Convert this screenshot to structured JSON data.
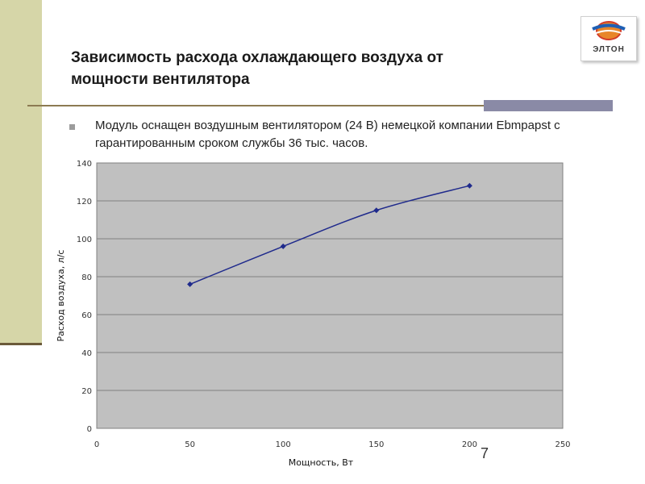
{
  "slide": {
    "title": "Зависимость расхода охлаждающего воздуха от мощности вентилятора",
    "bullet_text": "Модуль оснащен воздушным вентилятором (24 В) немецкой компании Ebmpapst с гарантированным сроком службы 36 тыс. часов.",
    "page_number": "7",
    "logo_text": "ЭЛТОН"
  },
  "colors": {
    "plot_background": "#c0c0c0",
    "series_line": "#1f2a8c",
    "gridline": "#808080",
    "accent_band": "#d6d6a8"
  },
  "chart_data": {
    "type": "line",
    "title": "",
    "xlabel": "Мощность, Вт",
    "ylabel": "Расход воздуха, л/с",
    "xlim": [
      0,
      250
    ],
    "ylim": [
      0,
      140
    ],
    "xticks": [
      0,
      50,
      100,
      150,
      200,
      250
    ],
    "yticks": [
      0,
      20,
      40,
      60,
      80,
      100,
      120,
      140
    ],
    "grid": true,
    "legend": "none",
    "series": [
      {
        "x": [
          50,
          100,
          150,
          200
        ],
        "y": [
          76,
          96,
          115,
          128
        ]
      }
    ]
  }
}
